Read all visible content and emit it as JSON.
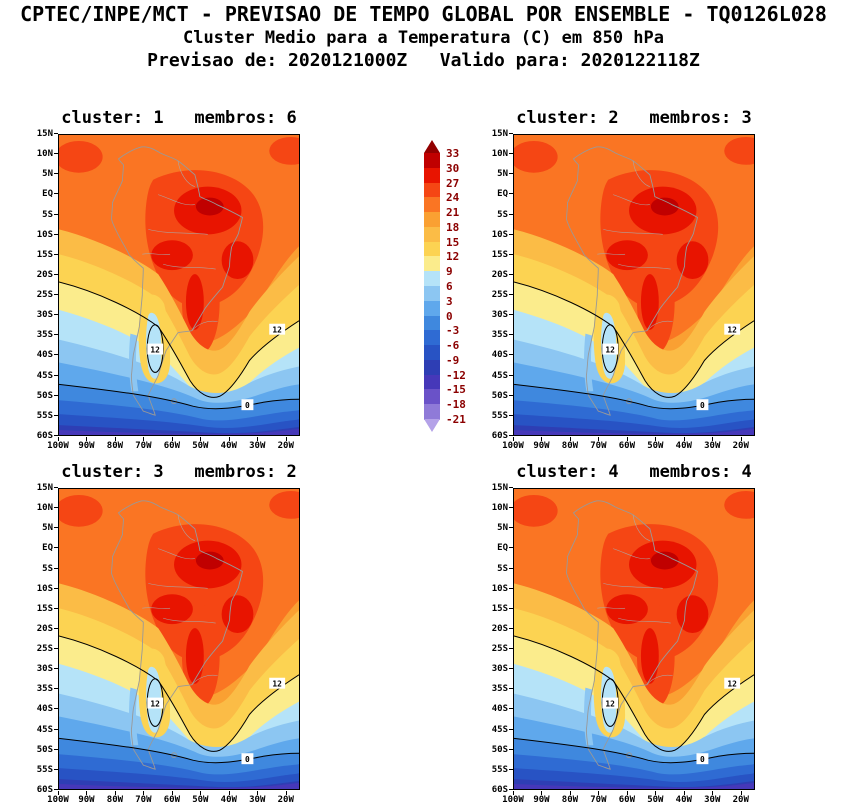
{
  "header": {
    "line1": "CPTEC/INPE/MCT - PREVISAO DE TEMPO GLOBAL POR ENSEMBLE - TQ0126L028",
    "line2": "Cluster Medio para a Temperatura (C) em 850 hPa",
    "line3": "Previsao de: 2020121000Z   Valido para: 2020122118Z"
  },
  "panels": [
    {
      "title": "cluster: 1   membros: 6"
    },
    {
      "title": "cluster: 2   membros: 3"
    },
    {
      "title": "cluster: 3   membros: 2"
    },
    {
      "title": "cluster: 4   membros: 4"
    }
  ],
  "axes": {
    "lat": [
      "15N",
      "10N",
      "5N",
      "EQ",
      "5S",
      "10S",
      "15S",
      "20S",
      "25S",
      "30S",
      "35S",
      "40S",
      "45S",
      "50S",
      "55S",
      "60S"
    ],
    "lon": [
      "100W",
      "90W",
      "80W",
      "70W",
      "60W",
      "50W",
      "40W",
      "30W",
      "20W"
    ]
  },
  "colorbar": {
    "labels": [
      "33",
      "30",
      "27",
      "24",
      "21",
      "18",
      "15",
      "12",
      "9",
      "6",
      "3",
      "0",
      "-3",
      "-6",
      "-9",
      "-12",
      "-15",
      "-18",
      "-21"
    ],
    "colors": [
      "#920000",
      "#c00000",
      "#e81400",
      "#f54614",
      "#fa7523",
      "#faa032",
      "#fbbc46",
      "#fcd352",
      "#fbec8c",
      "#b5e3f8",
      "#8cc6f2",
      "#5fa8ec",
      "#3f88de",
      "#2f6bd3",
      "#2853c4",
      "#2e3eb4",
      "#4638b9",
      "#6a52c8",
      "#8f7ad8",
      "#b4a2e8"
    ],
    "label_color": "#8b0000"
  },
  "map": {
    "contour_label_12": "12",
    "contour_label_0": "0"
  }
}
